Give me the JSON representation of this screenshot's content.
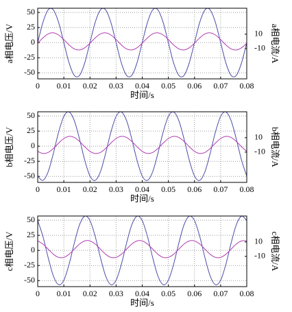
{
  "chart_data": [
    {
      "type": "line",
      "xlabel": "时间/s",
      "ylabel": "a相电压/V",
      "y2label": "a相电流/A",
      "x": [
        0,
        0.002,
        0.004,
        0.006,
        0.008,
        0.01,
        0.012,
        0.014,
        0.016,
        0.018,
        0.02,
        0.022,
        0.024,
        0.026,
        0.028,
        0.03,
        0.032,
        0.034,
        0.036,
        0.038,
        0.04,
        0.042,
        0.044,
        0.046,
        0.048,
        0.05,
        0.052,
        0.054,
        0.056,
        0.058,
        0.06,
        0.062,
        0.064,
        0.066,
        0.068,
        0.07,
        0.072,
        0.074,
        0.076,
        0.078,
        0.08
      ],
      "series": [
        {
          "color": "#4b4ba8",
          "values": [
            0,
            33.5,
            54.2,
            54.2,
            33.5,
            0,
            -33.5,
            -54.2,
            -54.2,
            -33.5,
            0,
            33.5,
            54.2,
            54.2,
            33.5,
            0,
            -33.5,
            -54.2,
            -54.2,
            -33.5,
            0,
            33.5,
            54.2,
            54.2,
            33.5,
            0,
            -33.5,
            -54.2,
            -54.2,
            -33.5,
            0,
            33.5,
            54.2,
            54.2,
            33.5,
            0,
            -33.5,
            -54.2,
            -54.2,
            -33.5,
            0
          ]
        },
        {
          "color": "#b03cb0",
          "axis": "y2",
          "values": [
            -2.5,
            4.9,
            10.4,
            11.9,
            8.9,
            2.5,
            -4.9,
            -10.4,
            -11.9,
            -8.9,
            -2.5,
            4.9,
            10.4,
            11.9,
            8.9,
            2.5,
            -4.9,
            -10.4,
            -11.9,
            -8.9,
            -2.5,
            4.9,
            10.4,
            11.9,
            8.9,
            2.5,
            -4.9,
            -10.4,
            -11.9,
            -8.9,
            -2.5,
            4.9,
            10.4,
            11.9,
            8.9,
            2.5,
            -4.9,
            -10.4,
            -11.9,
            -8.9,
            -2.5
          ]
        }
      ],
      "xlim": [
        0,
        0.08
      ],
      "xticks": [
        0,
        0.01,
        0.02,
        0.03,
        0.04,
        0.05,
        0.06,
        0.07,
        0.08
      ],
      "ylim": [
        -60,
        57
      ],
      "yticks": [
        -50,
        -25,
        0,
        25,
        50
      ],
      "y2lim": [
        -52,
        46
      ],
      "y2ticks": [
        -10,
        10
      ],
      "grid": true
    },
    {
      "type": "line",
      "xlabel": "时间/s",
      "ylabel": "b相电压/V",
      "y2label": "b相电流/A",
      "x": [
        0,
        0.002,
        0.004,
        0.006,
        0.008,
        0.01,
        0.012,
        0.014,
        0.016,
        0.018,
        0.02,
        0.022,
        0.024,
        0.026,
        0.028,
        0.03,
        0.032,
        0.034,
        0.036,
        0.038,
        0.04,
        0.042,
        0.044,
        0.046,
        0.048,
        0.05,
        0.052,
        0.054,
        0.056,
        0.058,
        0.06,
        0.062,
        0.064,
        0.066,
        0.068,
        0.07,
        0.072,
        0.074,
        0.076,
        0.078,
        0.08
      ],
      "series": [
        {
          "color": "#4b4ba8",
          "values": [
            -49.4,
            -56.7,
            -42.4,
            -11.9,
            23.2,
            49.4,
            56.7,
            42.4,
            11.9,
            -23.2,
            -49.4,
            -56.7,
            -42.4,
            -11.9,
            23.2,
            49.4,
            56.7,
            42.4,
            11.9,
            -23.2,
            -49.4,
            -56.7,
            -42.4,
            -11.9,
            23.2,
            49.4,
            56.7,
            42.4,
            11.9,
            -23.2,
            -49.4,
            -56.7,
            -42.4,
            -11.9,
            23.2,
            49.4,
            56.7,
            42.4,
            11.9,
            -23.2,
            -49.4
          ]
        },
        {
          "color": "#b03cb0",
          "axis": "y2",
          "values": [
            -8.9,
            -11.9,
            -10.4,
            -4.9,
            2.5,
            8.9,
            11.9,
            10.4,
            4.9,
            -2.5,
            -8.9,
            -11.9,
            -10.4,
            -4.9,
            2.5,
            8.9,
            11.9,
            10.4,
            4.9,
            -2.5,
            -8.9,
            -11.9,
            -10.4,
            -4.9,
            2.5,
            8.9,
            11.9,
            10.4,
            4.9,
            -2.5,
            -8.9,
            -11.9,
            -10.4,
            -4.9,
            2.5,
            8.9,
            11.9,
            10.4,
            4.9,
            -2.5,
            -8.9
          ]
        }
      ],
      "xlim": [
        0,
        0.08
      ],
      "xticks": [
        0,
        0.01,
        0.02,
        0.03,
        0.04,
        0.05,
        0.06,
        0.07,
        0.08
      ],
      "ylim": [
        -60,
        57
      ],
      "yticks": [
        -50,
        -25,
        0,
        25,
        50
      ],
      "y2lim": [
        -52,
        46
      ],
      "y2ticks": [
        -10,
        10
      ],
      "grid": true
    },
    {
      "type": "line",
      "xlabel": "时间/s",
      "ylabel": "c相电压/V",
      "y2label": "c相电流/A",
      "x": [
        0,
        0.002,
        0.004,
        0.006,
        0.008,
        0.01,
        0.012,
        0.014,
        0.016,
        0.018,
        0.02,
        0.022,
        0.024,
        0.026,
        0.028,
        0.03,
        0.032,
        0.034,
        0.036,
        0.038,
        0.04,
        0.042,
        0.044,
        0.046,
        0.048,
        0.05,
        0.052,
        0.054,
        0.056,
        0.058,
        0.06,
        0.062,
        0.064,
        0.066,
        0.068,
        0.07,
        0.072,
        0.074,
        0.076,
        0.078,
        0.08
      ],
      "series": [
        {
          "color": "#4b4ba8",
          "values": [
            49.4,
            23.2,
            -11.9,
            -42.4,
            -56.7,
            -49.4,
            -23.2,
            11.9,
            42.4,
            56.7,
            49.4,
            23.2,
            -11.9,
            -42.4,
            -56.7,
            -49.4,
            -23.2,
            11.9,
            42.4,
            56.7,
            49.4,
            23.2,
            -11.9,
            -42.4,
            -56.7,
            -49.4,
            -23.2,
            11.9,
            42.4,
            56.7,
            49.4,
            23.2,
            -11.9,
            -42.4,
            -56.7,
            -49.4,
            -23.2,
            11.9,
            42.4,
            56.7,
            49.4
          ]
        },
        {
          "color": "#b03cb0",
          "axis": "y2",
          "values": [
            11.4,
            7.1,
            0,
            -7.1,
            -11.4,
            -11.4,
            -7.1,
            0,
            7.1,
            11.4,
            11.4,
            7.1,
            0,
            -7.1,
            -11.4,
            -11.4,
            -7.1,
            0,
            7.1,
            11.4,
            11.4,
            7.1,
            0,
            -7.1,
            -11.4,
            -11.4,
            -7.1,
            0,
            7.1,
            11.4,
            11.4,
            7.1,
            0,
            -7.1,
            -11.4,
            -11.4,
            -7.1,
            0,
            7.1,
            11.4,
            11.4
          ]
        }
      ],
      "xlim": [
        0,
        0.08
      ],
      "xticks": [
        0,
        0.01,
        0.02,
        0.03,
        0.04,
        0.05,
        0.06,
        0.07,
        0.08
      ],
      "ylim": [
        -60,
        57
      ],
      "yticks": [
        -50,
        -25,
        0,
        25,
        50
      ],
      "y2lim": [
        -52,
        46
      ],
      "y2ticks": [
        -10,
        10
      ],
      "grid": true
    }
  ]
}
